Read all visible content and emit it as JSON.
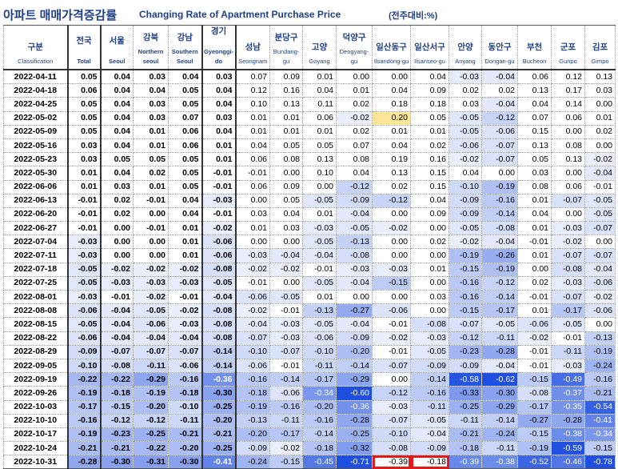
{
  "title": {
    "korean": "아파트 매매가격증감률",
    "english": "Changing Rate of Apartment Purchase Price",
    "unit": "(전주대비:%)"
  },
  "columns": [
    {
      "ko": "구분",
      "en": "Classification"
    },
    {
      "ko": "전국",
      "en": "Total"
    },
    {
      "ko": "서울",
      "en": "Seoul"
    },
    {
      "ko": "강북",
      "en": "Northern seoul"
    },
    {
      "ko": "강남",
      "en": "Southern Seoul"
    },
    {
      "ko": "경기",
      "en": "Gyeonggi-do"
    },
    {
      "ko": "성남",
      "en": "Seongnam"
    },
    {
      "ko": "분당구",
      "en": "Bundang-gu"
    },
    {
      "ko": "고양",
      "en": "Goyang"
    },
    {
      "ko": "덕양구",
      "en": "Deogyang-gu"
    },
    {
      "ko": "일산동구",
      "en": "Ilsandong-gu"
    },
    {
      "ko": "일산서구",
      "en": "Ilsanseo-gu"
    },
    {
      "ko": "안양",
      "en": "Anyang"
    },
    {
      "ko": "동안구",
      "en": "Dongan-gu"
    },
    {
      "ko": "부천",
      "en": "Bucheon"
    },
    {
      "ko": "군포",
      "en": "Gunpo"
    },
    {
      "ko": "김포",
      "en": "Gimpo"
    }
  ],
  "rows": [
    {
      "date": "2022-04-11",
      "values": [
        "0.05",
        "0.04",
        "0.03",
        "0.04",
        "0.03",
        "0.07",
        "0.09",
        "0.01",
        "0.00",
        "0.00",
        "0.04",
        "-0.03",
        "-0.04",
        "0.06",
        "0.12",
        "0.13"
      ]
    },
    {
      "date": "2022-04-18",
      "values": [
        "0.06",
        "0.04",
        "0.04",
        "0.05",
        "0.04",
        "0.12",
        "0.16",
        "0.04",
        "0.01",
        "0.04",
        "0.09",
        "0.02",
        "0.02",
        "0.13",
        "0.17",
        "0.03"
      ]
    },
    {
      "date": "2022-04-25",
      "values": [
        "0.05",
        "0.04",
        "0.03",
        "0.05",
        "0.04",
        "0.10",
        "0.13",
        "0.11",
        "0.02",
        "0.18",
        "0.18",
        "0.03",
        "-0.04",
        "0.04",
        "0.14",
        "0.00"
      ]
    },
    {
      "date": "2022-05-02",
      "values": [
        "0.05",
        "0.04",
        "0.03",
        "0.07",
        "0.03",
        "0.01",
        "0.01",
        "0.06",
        "-0.02",
        "0.20",
        "0.05",
        "-0.05",
        "-0.12",
        "0.07",
        "0.06",
        "0.01"
      ]
    },
    {
      "date": "2022-05-09",
      "values": [
        "0.05",
        "0.04",
        "0.01",
        "0.06",
        "0.04",
        "0.01",
        "0.01",
        "0.01",
        "0.02",
        "0.01",
        "0.01",
        "-0.05",
        "-0.06",
        "0.15",
        "0.00",
        "0.02"
      ]
    },
    {
      "date": "2022-05-16",
      "values": [
        "0.03",
        "0.04",
        "0.01",
        "0.06",
        "0.01",
        "0.04",
        "0.05",
        "0.05",
        "0.07",
        "0.04",
        "0.02",
        "-0.06",
        "-0.07",
        "0.13",
        "0.08",
        "0.00"
      ]
    },
    {
      "date": "2022-05-23",
      "values": [
        "0.03",
        "0.05",
        "0.05",
        "0.05",
        "0.01",
        "0.06",
        "0.08",
        "0.13",
        "0.08",
        "0.19",
        "0.16",
        "-0.02",
        "-0.07",
        "0.05",
        "0.13",
        "-0.02"
      ]
    },
    {
      "date": "2022-05-30",
      "values": [
        "0.01",
        "0.04",
        "0.02",
        "0.05",
        "-0.01",
        "-0.01",
        "0.00",
        "0.10",
        "0.04",
        "0.13",
        "0.15",
        "0.04",
        "0.00",
        "0.03",
        "0.00",
        "-0.04"
      ]
    },
    {
      "date": "2022-06-06",
      "values": [
        "0.01",
        "0.03",
        "0.01",
        "0.05",
        "-0.01",
        "0.06",
        "0.09",
        "0.00",
        "-0.12",
        "0.02",
        "0.15",
        "-0.10",
        "-0.19",
        "0.08",
        "0.06",
        "-0.01"
      ]
    },
    {
      "date": "2022-06-13",
      "values": [
        "-0.01",
        "0.02",
        "-0.01",
        "0.04",
        "-0.03",
        "0.00",
        "0.05",
        "-0.05",
        "-0.09",
        "-0.12",
        "0.04",
        "-0.09",
        "-0.16",
        "0.01",
        "-0.07",
        "-0.05"
      ]
    },
    {
      "date": "2022-06-20",
      "values": [
        "-0.01",
        "0.02",
        "0.00",
        "0.04",
        "-0.01",
        "0.03",
        "0.04",
        "0.01",
        "-0.04",
        "0.00",
        "0.09",
        "-0.09",
        "-0.14",
        "0.04",
        "0.00",
        "-0.05"
      ]
    },
    {
      "date": "2022-06-27",
      "values": [
        "-0.01",
        "0.00",
        "-0.01",
        "0.01",
        "-0.02",
        "0.01",
        "0.03",
        "-0.03",
        "-0.05",
        "-0.02",
        "0.00",
        "-0.05",
        "-0.08",
        "0.01",
        "-0.03",
        "-0.07"
      ]
    },
    {
      "date": "2022-07-04",
      "values": [
        "-0.03",
        "0.00",
        "0.00",
        "0.01",
        "-0.06",
        "0.00",
        "0.00",
        "-0.05",
        "-0.13",
        "0.00",
        "0.02",
        "-0.02",
        "-0.04",
        "-0.01",
        "-0.02",
        "0.00"
      ]
    },
    {
      "date": "2022-07-11",
      "values": [
        "-0.03",
        "0.00",
        "0.00",
        "0.01",
        "-0.06",
        "-0.03",
        "-0.04",
        "-0.04",
        "-0.08",
        "0.00",
        "0.00",
        "-0.19",
        "-0.26",
        "0.01",
        "-0.07",
        "-0.07"
      ]
    },
    {
      "date": "2022-07-18",
      "values": [
        "-0.05",
        "-0.02",
        "-0.02",
        "-0.02",
        "-0.08",
        "-0.02",
        "-0.02",
        "-0.01",
        "-0.03",
        "-0.03",
        "0.01",
        "-0.15",
        "-0.19",
        "0.00",
        "-0.08",
        "-0.04"
      ]
    },
    {
      "date": "2022-07-25",
      "values": [
        "-0.05",
        "-0.03",
        "-0.03",
        "-0.03",
        "-0.05",
        "-0.01",
        "0.00",
        "-0.05",
        "-0.04",
        "-0.15",
        "0.00",
        "-0.16",
        "-0.12",
        "0.02",
        "-0.03",
        "-0.06"
      ]
    },
    {
      "date": "2022-08-01",
      "values": [
        "-0.03",
        "-0.01",
        "-0.02",
        "-0.01",
        "-0.04",
        "-0.06",
        "-0.05",
        "0.01",
        "0.00",
        "0.00",
        "0.03",
        "-0.16",
        "-0.14",
        "-0.01",
        "-0.07",
        "-0.02"
      ]
    },
    {
      "date": "2022-08-08",
      "values": [
        "-0.06",
        "-0.04",
        "-0.05",
        "-0.02",
        "-0.08",
        "-0.02",
        "-0.01",
        "-0.13",
        "-0.27",
        "-0.06",
        "0.00",
        "-0.15",
        "-0.17",
        "0.01",
        "-0.17",
        "-0.06"
      ]
    },
    {
      "date": "2022-08-15",
      "values": [
        "-0.05",
        "-0.04",
        "-0.06",
        "-0.03",
        "-0.08",
        "-0.04",
        "-0.03",
        "-0.05",
        "-0.04",
        "-0.01",
        "-0.08",
        "-0.07",
        "-0.05",
        "-0.06",
        "-0.05",
        "0.00"
      ]
    },
    {
      "date": "2022-08-22",
      "values": [
        "-0.06",
        "-0.04",
        "-0.04",
        "-0.04",
        "-0.08",
        "-0.07",
        "-0.03",
        "-0.06",
        "-0.09",
        "-0.02",
        "-0.03",
        "-0.12",
        "-0.11",
        "-0.02",
        "-0.01",
        "-0.13"
      ]
    },
    {
      "date": "2022-08-29",
      "values": [
        "-0.09",
        "-0.07",
        "-0.07",
        "-0.07",
        "-0.14",
        "-0.10",
        "-0.07",
        "-0.10",
        "-0.20",
        "-0.01",
        "-0.05",
        "-0.23",
        "-0.28",
        "-0.01",
        "-0.11",
        "-0.19"
      ]
    },
    {
      "date": "2022-09-05",
      "values": [
        "-0.10",
        "-0.08",
        "-0.11",
        "-0.06",
        "-0.14",
        "-0.06",
        "-0.01",
        "-0.11",
        "-0.14",
        "-0.07",
        "-0.09",
        "-0.09",
        "-0.04",
        "-0.01",
        "-0.03",
        "-0.24"
      ]
    },
    {
      "date": "2022-09-19",
      "values": [
        "-0.22",
        "-0.22",
        "-0.29",
        "-0.16",
        "-0.36",
        "-0.16",
        "-0.14",
        "-0.17",
        "-0.29",
        "0.00",
        "-0.14",
        "-0.58",
        "-0.62",
        "-0.15",
        "-0.49",
        "-0.16"
      ]
    },
    {
      "date": "2022-09-26",
      "values": [
        "-0.19",
        "-0.18",
        "-0.19",
        "-0.18",
        "-0.30",
        "-0.18",
        "-0.06",
        "-0.34",
        "-0.60",
        "-0.12",
        "-0.16",
        "-0.33",
        "-0.30",
        "-0.08",
        "-0.37",
        "-0.21"
      ]
    },
    {
      "date": "2022-10-03",
      "values": [
        "-0.17",
        "-0.15",
        "-0.20",
        "-0.10",
        "-0.25",
        "-0.19",
        "-0.16",
        "-0.20",
        "-0.36",
        "-0.03",
        "-0.11",
        "-0.25",
        "-0.29",
        "-0.17",
        "-0.35",
        "-0.54"
      ]
    },
    {
      "date": "2022-10-10",
      "values": [
        "-0.16",
        "-0.12",
        "-0.12",
        "-0.11",
        "-0.20",
        "-0.13",
        "-0.11",
        "-0.16",
        "-0.28",
        "-0.07",
        "-0.05",
        "-0.11",
        "-0.14",
        "-0.27",
        "-0.28",
        "-0.41"
      ]
    },
    {
      "date": "2022-10-17",
      "values": [
        "-0.19",
        "-0.23",
        "-0.25",
        "-0.21",
        "-0.21",
        "-0.20",
        "-0.17",
        "-0.14",
        "-0.25",
        "-0.10",
        "-0.04",
        "-0.21",
        "-0.24",
        "-0.15",
        "-0.38",
        "-0.34"
      ]
    },
    {
      "date": "2022-10-24",
      "values": [
        "-0.21",
        "-0.21",
        "-0.22",
        "-0.20",
        "-0.25",
        "-0.09",
        "-0.02",
        "-0.18",
        "-0.32",
        "-0.08",
        "-0.09",
        "-0.18",
        "-0.11",
        "-0.19",
        "-0.59",
        "-0.15"
      ]
    },
    {
      "date": "2022-10-31",
      "values": [
        "-0.28",
        "-0.30",
        "-0.31",
        "-0.30",
        "-0.41",
        "-0.24",
        "-0.15",
        "-0.45",
        "-0.71",
        "-0.39",
        "-0.18",
        "-0.39",
        "-0.38",
        "-0.52",
        "-0.46",
        "-0.78"
      ]
    }
  ],
  "highlights": {
    "yellow_fill": "#ffe699",
    "red_border": "#e11b1b",
    "yellow_cells": [
      {
        "date": "2022-05-02",
        "column": "일산동구"
      }
    ],
    "red_box_cells": [
      {
        "date": "2022-10-31",
        "column": "일산동구"
      },
      {
        "date": "2022-10-31",
        "column": "일산서구"
      }
    ]
  },
  "colors": {
    "header_text": "#1f3f86",
    "heatmap_light": "#f2f5fd",
    "heatmap_dark": "#1f4fe0"
  }
}
